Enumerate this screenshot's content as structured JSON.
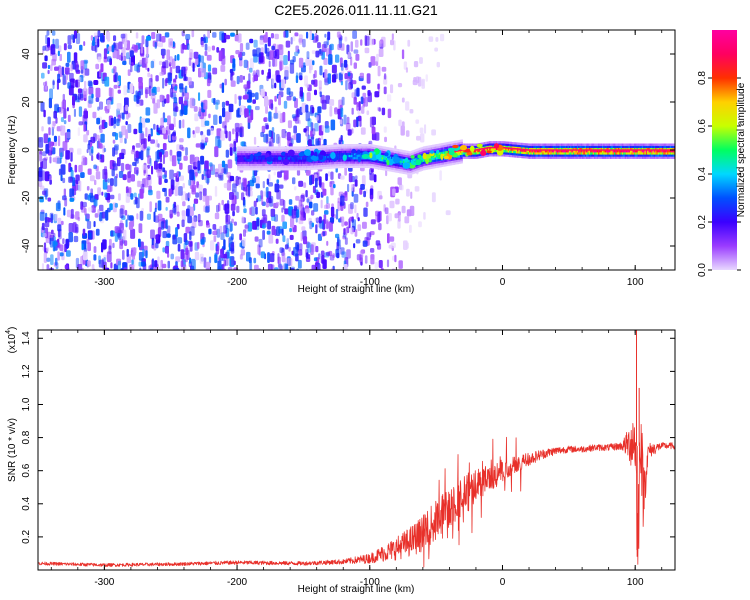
{
  "title": "C2E5.2026.011.11.11.G21",
  "chart_data": [
    {
      "type": "heatmap",
      "title": "C2E5.2026.011.11.11.G21",
      "xlabel": "Height of straight line (km)",
      "ylabel": "Frequency (Hz)",
      "xlim": [
        -350,
        130
      ],
      "ylim": [
        -50,
        50
      ],
      "x_ticks": [
        -300,
        -200,
        -100,
        0,
        100
      ],
      "x_tick_labels": [
        "-300",
        "-200",
        "-100",
        "0",
        "100"
      ],
      "y_ticks": [
        -40,
        -20,
        0,
        20,
        40
      ],
      "y_tick_labels": [
        "-40",
        "-20",
        "0",
        "20",
        "40"
      ],
      "colorbar": {
        "label": "Normalized spectral amplitude",
        "range": [
          0,
          1
        ],
        "ticks": [
          0.0,
          0.2,
          0.4,
          0.6,
          0.8
        ],
        "tick_labels": [
          "0.0",
          "0.2",
          "0.4",
          "0.6",
          "0.8"
        ],
        "colormap": [
          "#e8d8ff",
          "#9a3cff",
          "#3a00ff",
          "#0050ff",
          "#00d8ff",
          "#00ff60",
          "#c8ff00",
          "#ffd000",
          "#ff3000",
          "#ff0060",
          "#ff00a0"
        ]
      },
      "signal_track": {
        "description_free": true,
        "x": [
          -200,
          -150,
          -120,
          -100,
          -90,
          -80,
          -70,
          -60,
          -50,
          -40,
          -30,
          -20,
          -10,
          0,
          20,
          50,
          100,
          130
        ],
        "center_freq": [
          -3,
          -3,
          -2,
          -2,
          -3,
          -4,
          -5,
          -3,
          -2,
          -1,
          0,
          0,
          1,
          1,
          0,
          0,
          0,
          0
        ],
        "amplitude": [
          0.25,
          0.3,
          0.35,
          0.5,
          0.5,
          0.45,
          0.5,
          0.55,
          0.6,
          0.7,
          0.75,
          0.85,
          0.8,
          0.85,
          0.9,
          0.95,
          0.95,
          0.95
        ]
      },
      "noise_extent_x": [
        -350,
        -80
      ]
    },
    {
      "type": "line",
      "xlabel": "Height of straight line (km)",
      "ylabel": "SNR (10 * v/v)",
      "y_multiplier": "(x10",
      "y_multiplier_exp": "4",
      "y_multiplier_close": ")",
      "xlim": [
        -350,
        130
      ],
      "ylim": [
        0,
        1.45
      ],
      "x_ticks": [
        -300,
        -200,
        -100,
        0,
        100
      ],
      "x_tick_labels": [
        "-300",
        "-200",
        "-100",
        "0",
        "100"
      ],
      "y_ticks": [
        0.2,
        0.4,
        0.6,
        0.8,
        1.0,
        1.2,
        1.4
      ],
      "y_tick_labels": [
        "0.2",
        "0.4",
        "0.6",
        "0.8",
        "1.0",
        "1.2",
        "1.4"
      ],
      "color": "#e8302a",
      "series": [
        {
          "name": "SNR",
          "x": [
            -350,
            -300,
            -250,
            -200,
            -150,
            -120,
            -100,
            -90,
            -80,
            -70,
            -60,
            -50,
            -40,
            -30,
            -20,
            -10,
            0,
            10,
            20,
            30,
            40,
            50,
            60,
            70,
            80,
            90,
            95,
            100,
            102,
            104,
            106,
            110,
            120,
            130
          ],
          "y": [
            0.04,
            0.03,
            0.035,
            0.045,
            0.04,
            0.05,
            0.07,
            0.1,
            0.13,
            0.17,
            0.22,
            0.3,
            0.38,
            0.45,
            0.5,
            0.55,
            0.6,
            0.64,
            0.67,
            0.7,
            0.72,
            0.73,
            0.73,
            0.74,
            0.74,
            0.75,
            0.76,
            0.8,
            0.12,
            0.9,
            0.45,
            0.72,
            0.75,
            0.75
          ],
          "noise": [
            0.01,
            0.01,
            0.01,
            0.012,
            0.012,
            0.015,
            0.03,
            0.05,
            0.07,
            0.09,
            0.11,
            0.12,
            0.13,
            0.12,
            0.11,
            0.09,
            0.07,
            0.05,
            0.04,
            0.03,
            0.025,
            0.02,
            0.02,
            0.02,
            0.02,
            0.025,
            0.1,
            0.25,
            0.3,
            0.3,
            0.2,
            0.05,
            0.02,
            0.02
          ],
          "peaks": [
            {
              "x": 101,
              "y": 1.45
            },
            {
              "x": 103,
              "y": 1.1
            },
            {
              "x": 101.5,
              "y": 0.08
            }
          ]
        }
      ]
    }
  ]
}
